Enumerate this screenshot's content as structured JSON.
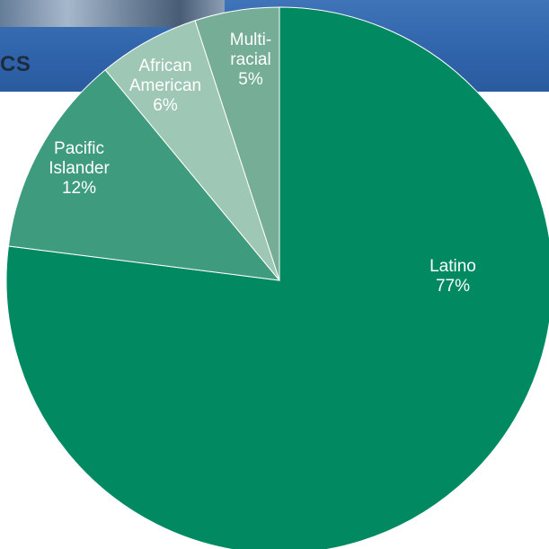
{
  "header": {
    "banner_text": "CS"
  },
  "colors": {
    "banner": "#2f63aa",
    "latino": "#018a62",
    "pacific_islander": "#3f9b7d",
    "african_american": "#9fc7b6",
    "multiracial": "#75ad97"
  },
  "chart_data": {
    "type": "pie",
    "title": "",
    "start_angle_deg": 0,
    "direction": "clockwise",
    "slices": [
      {
        "label_lines": [
          "Latino",
          "77%"
        ],
        "value": 77,
        "color": "#018a62"
      },
      {
        "label_lines": [
          "Pacific",
          "Islander",
          "12%"
        ],
        "value": 12,
        "color": "#3f9b7d"
      },
      {
        "label_lines": [
          "African",
          "American",
          "6%"
        ],
        "value": 6,
        "color": "#9fc7b6"
      },
      {
        "label_lines": [
          "Multi-",
          "racial",
          "5%"
        ],
        "value": 5,
        "color": "#75ad97"
      }
    ]
  }
}
